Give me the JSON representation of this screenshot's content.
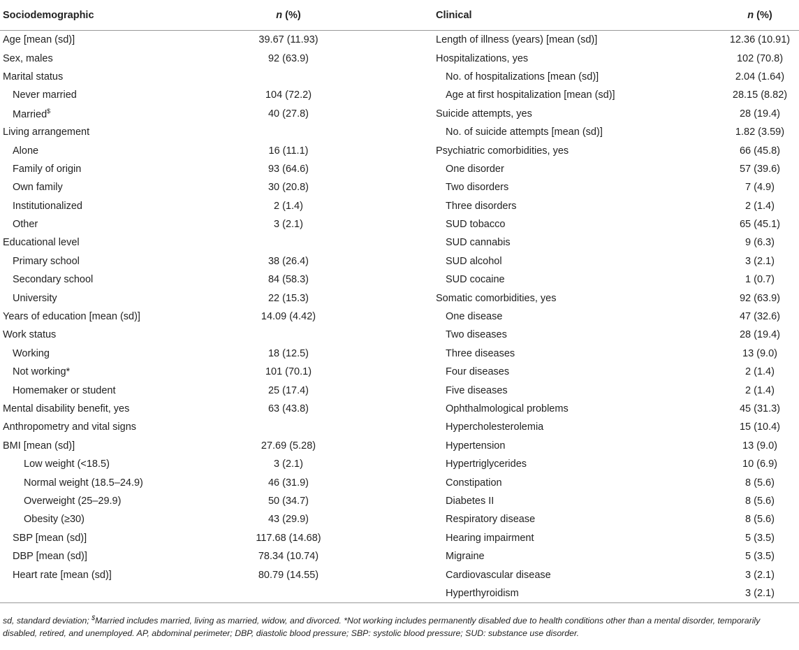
{
  "header": {
    "left_label": "Sociodemographic",
    "left_n": "n",
    "left_pct": "(%)",
    "right_label": "Clinical",
    "right_n": "n",
    "right_pct": "(%)"
  },
  "left_rows": [
    {
      "label": "Age [mean (sd)]",
      "value": "39.67 (11.93)",
      "level": 0
    },
    {
      "label": "Sex, males",
      "value": "92 (63.9)",
      "level": 0
    },
    {
      "label": "Marital status",
      "level": 0
    },
    {
      "label": "Never married",
      "value": "104 (72.2)",
      "level": 1
    },
    {
      "label": "Married",
      "sup": "$",
      "value": "40 (27.8)",
      "level": 1
    },
    {
      "label": "Living arrangement",
      "level": 0
    },
    {
      "label": "Alone",
      "value": "16 (11.1)",
      "level": 1
    },
    {
      "label": "Family of origin",
      "value": "93 (64.6)",
      "level": 1
    },
    {
      "label": "Own family",
      "value": "30 (20.8)",
      "level": 1
    },
    {
      "label": "Institutionalized",
      "value": "2 (1.4)",
      "level": 1
    },
    {
      "label": "Other",
      "value": "3 (2.1)",
      "level": 1
    },
    {
      "label": "Educational level",
      "level": 0
    },
    {
      "label": "Primary school",
      "value": "38 (26.4)",
      "level": 1
    },
    {
      "label": "Secondary school",
      "value": "84 (58.3)",
      "level": 1
    },
    {
      "label": "University",
      "value": "22 (15.3)",
      "level": 1
    },
    {
      "label": "Years of education [mean (sd)]",
      "value": "14.09 (4.42)",
      "level": 0
    },
    {
      "label": "Work status",
      "level": 0
    },
    {
      "label": "Working",
      "value": "18 (12.5)",
      "level": 1
    },
    {
      "label": "Not working*",
      "value": "101 (70.1)",
      "level": 1
    },
    {
      "label": "Homemaker or student",
      "value": "25 (17.4)",
      "level": 1
    },
    {
      "label": "Mental disability benefit, yes",
      "value": "63 (43.8)",
      "level": 0
    },
    {
      "label": "Anthropometry and vital signs",
      "level": 0
    },
    {
      "label": "BMI [mean (sd)]",
      "value": "27.69 (5.28)",
      "level": 0
    },
    {
      "label": "Low weight (<18.5)",
      "value": "3 (2.1)",
      "level": 2
    },
    {
      "label": "Normal weight (18.5–24.9)",
      "value": "46 (31.9)",
      "level": 2
    },
    {
      "label": "Overweight (25–29.9)",
      "value": "50 (34.7)",
      "level": 2
    },
    {
      "label": "Obesity (≥30)",
      "value": "43 (29.9)",
      "level": 2
    },
    {
      "label": "SBP [mean (sd)]",
      "value": "117.68 (14.68)",
      "level": 1
    },
    {
      "label": "DBP [mean (sd)]",
      "value": "78.34 (10.74)",
      "level": 1
    },
    {
      "label": "Heart rate [mean (sd)]",
      "value": "80.79 (14.55)",
      "level": 1
    }
  ],
  "right_rows": [
    {
      "label": "Length of illness (years) [mean (sd)]",
      "value": "12.36 (10.91)",
      "level": 0
    },
    {
      "label": "Hospitalizations, yes",
      "value": "102 (70.8)",
      "level": 0
    },
    {
      "label": "No. of hospitalizations [mean (sd)]",
      "value": "2.04 (1.64)",
      "level": 1
    },
    {
      "label": "Age at first hospitalization [mean (sd)]",
      "value": "28.15 (8.82)",
      "level": 1
    },
    {
      "label": "Suicide attempts, yes",
      "value": "28 (19.4)",
      "level": 0
    },
    {
      "label": "No. of suicide attempts [mean (sd)]",
      "value": "1.82 (3.59)",
      "level": 1
    },
    {
      "label": "Psychiatric comorbidities, yes",
      "value": "66 (45.8)",
      "level": 0
    },
    {
      "label": "One disorder",
      "value": "57 (39.6)",
      "level": 1
    },
    {
      "label": "Two disorders",
      "value": "7 (4.9)",
      "level": 1
    },
    {
      "label": "Three disorders",
      "value": "2 (1.4)",
      "level": 1
    },
    {
      "label": "SUD tobacco",
      "value": "65 (45.1)",
      "level": 1
    },
    {
      "label": "SUD cannabis",
      "value": "9 (6.3)",
      "level": 1
    },
    {
      "label": "SUD alcohol",
      "value": "3 (2.1)",
      "level": 1
    },
    {
      "label": "SUD cocaine",
      "value": "1 (0.7)",
      "level": 1
    },
    {
      "label": "Somatic comorbidities, yes",
      "value": "92 (63.9)",
      "level": 0
    },
    {
      "label": "One disease",
      "value": "47 (32.6)",
      "level": 1
    },
    {
      "label": "Two diseases",
      "value": "28 (19.4)",
      "level": 1
    },
    {
      "label": "Three diseases",
      "value": "13 (9.0)",
      "level": 1
    },
    {
      "label": "Four diseases",
      "value": "2 (1.4)",
      "level": 1
    },
    {
      "label": "Five diseases",
      "value": "2 (1.4)",
      "level": 1
    },
    {
      "label": "Ophthalmological problems",
      "value": "45 (31.3)",
      "level": 1
    },
    {
      "label": "Hypercholesterolemia",
      "value": "15 (10.4)",
      "level": 1
    },
    {
      "label": "Hypertension",
      "value": "13 (9.0)",
      "level": 1
    },
    {
      "label": "Hypertriglycerides",
      "value": "10 (6.9)",
      "level": 1
    },
    {
      "label": "Constipation",
      "value": "8 (5.6)",
      "level": 1
    },
    {
      "label": "Diabetes II",
      "value": "8 (5.6)",
      "level": 1
    },
    {
      "label": "Respiratory disease",
      "value": "8 (5.6)",
      "level": 1
    },
    {
      "label": "Hearing impairment",
      "value": "5 (3.5)",
      "level": 1
    },
    {
      "label": "Migraine",
      "value": "5 (3.5)",
      "level": 1
    },
    {
      "label": "Cardiovascular disease",
      "value": "3 (2.1)",
      "level": 1
    },
    {
      "label": "Hyperthyroidism",
      "value": "3 (2.1)",
      "level": 1
    }
  ],
  "footnote": {
    "before": "sd, standard deviation; ",
    "sup": "$",
    "after": "Married includes married, living as married, widow, and divorced. *Not working includes permanently disabled due to health conditions other than a mental disorder, temporarily disabled, retired, and unemployed. AP, abdominal perimeter; DBP, diastolic blood pressure; SBP: systolic blood pressure; SUD: substance use disorder."
  }
}
